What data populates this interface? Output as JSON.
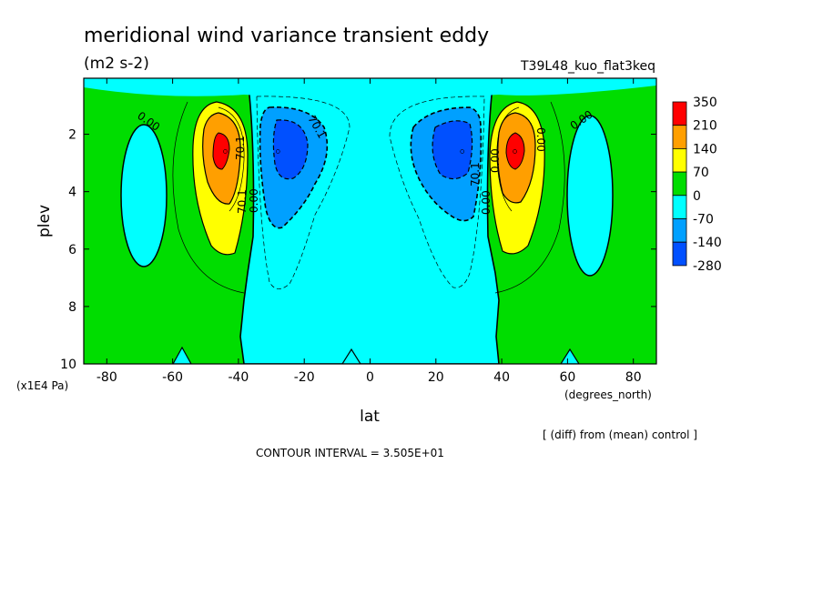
{
  "chart_data": {
    "type": "heatmap",
    "title": "meridional wind variance transient eddy",
    "subtitle": "(m2 s-2)",
    "experiment": "T39L48_kuo_flat3keq",
    "xlabel": "lat",
    "x_unit": "(degrees_north)",
    "ylabel": "plev",
    "y_unit": "(x1E4 Pa)",
    "xlim": [
      -87,
      87
    ],
    "ylim": [
      10,
      0.05
    ],
    "x_ticks": [
      -80,
      -60,
      -40,
      -20,
      0,
      20,
      40,
      60,
      80
    ],
    "y_ticks": [
      2,
      4,
      6,
      8,
      10
    ],
    "colorbar_levels": [
      "350",
      "210",
      "140",
      "70",
      "0",
      "-70",
      "-140",
      "-280"
    ],
    "colorbar_colors": [
      "#ff0000",
      "#ff9f00",
      "#ffff00",
      "#00dd00",
      "#00ffff",
      "#00a0ff",
      "#0050ff"
    ],
    "fill_colors": {
      "lowest": "#0050ff",
      "low": "#00a0ff",
      "neg": "#00ffff",
      "pos": "#00dd00",
      "mid": "#ffff00",
      "high": "#ff9f00",
      "peak": "#ff0000"
    },
    "contour_labels": [
      "0.00",
      "0.00",
      "70.1",
      "0.00",
      "0.00",
      "70.1",
      "70.1",
      "70.1",
      "0.00",
      "0.00"
    ],
    "extrema": [
      {
        "lat": -44,
        "plev": 2.6,
        "value": 350
      },
      {
        "lat": 44,
        "plev": 2.6,
        "value": 350
      },
      {
        "lat": -28,
        "plev": 2.6,
        "value": -280
      },
      {
        "lat": 28,
        "plev": 2.6,
        "value": -280
      }
    ],
    "footer_right": "[ (diff) from (mean) control ]",
    "contour_interval": "CONTOUR INTERVAL = 3.505E+01"
  }
}
